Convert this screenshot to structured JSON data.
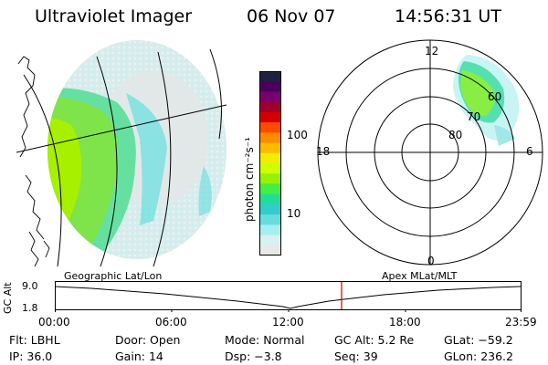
{
  "header": {
    "instrument": "Ultraviolet Imager",
    "date": "06 Nov 07",
    "time": "14:56:31 UT"
  },
  "colorbar": {
    "label": "photon cm⁻²s⁻¹",
    "ticks": [
      "100",
      "10"
    ],
    "colors": [
      "#202040",
      "#4b0060",
      "#7a006e",
      "#a00030",
      "#d40000",
      "#ff4a00",
      "#ff8c00",
      "#ffbb00",
      "#eeee00",
      "#ccff00",
      "#99f000",
      "#44ee44",
      "#22dd99",
      "#33cccc",
      "#66dddd",
      "#a8eeee",
      "#d8f0f0",
      "#e8e8e8"
    ]
  },
  "polar_plot": {
    "mlt_labels": {
      "top": "12",
      "left": "18",
      "right": "6",
      "bottom": "0"
    },
    "lat_labels": [
      "60",
      "70",
      "80"
    ]
  },
  "timeline": {
    "left_caption": "Geographic Lat/Lon",
    "right_caption": "Apex MLat/MLT",
    "axis_title": "GC Alt",
    "y_ticks": [
      "9.0",
      "1.8"
    ],
    "x_ticks": [
      "00:00",
      "06:00",
      "12:00",
      "18:00",
      "23:59"
    ],
    "current_marker_color": "#cc0000"
  },
  "info": {
    "row1": [
      {
        "label": "Flt:",
        "value": "LBHL"
      },
      {
        "label": "Door:",
        "value": "Open"
      },
      {
        "label": "Mode:",
        "value": "Normal"
      },
      {
        "label": "GC Alt:",
        "value": "5.2 Re"
      },
      {
        "label": "GLat:",
        "value": "−59.2"
      }
    ],
    "row2": [
      {
        "label": "IP:",
        "value": "36.0"
      },
      {
        "label": "Gain:",
        "value": "14"
      },
      {
        "label": "Dsp:",
        "value": "−3.8"
      },
      {
        "label": "Seq:",
        "value": "39"
      },
      {
        "label": "GLon:",
        "value": "236.2"
      }
    ]
  }
}
